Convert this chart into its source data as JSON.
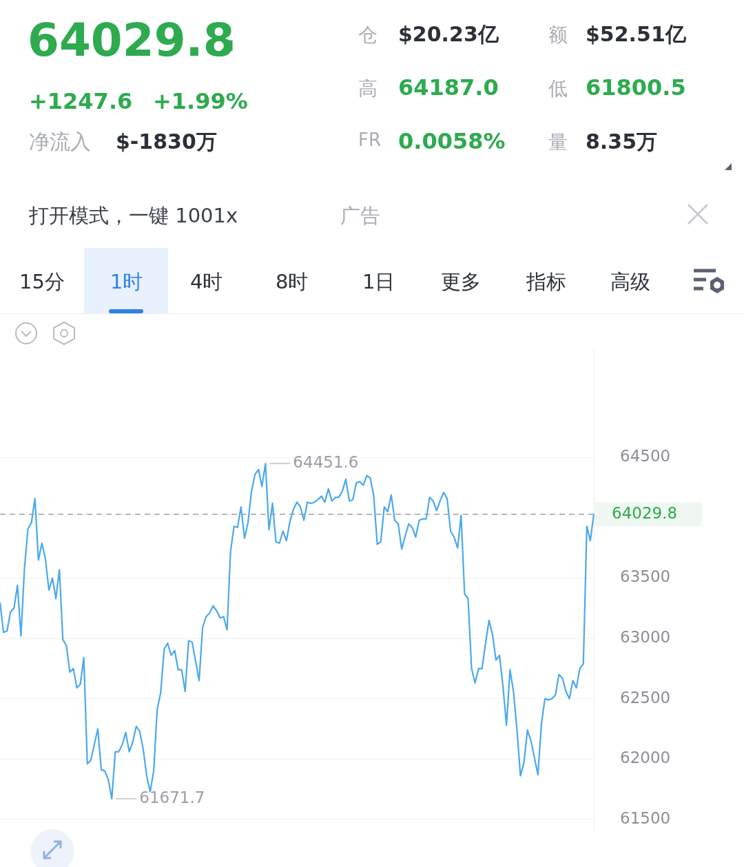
{
  "chart_data": {
    "type": "line",
    "title": "64029.8",
    "annotations": [
      "+1247.6",
      "+1.99%",
      "净流入",
      "$-1830万",
      "仓",
      "$20.23亿",
      "额",
      "$52.51亿",
      "高",
      "64187.0",
      "低",
      "61800.5",
      "FR",
      "0.0058%",
      "量",
      "8.35万",
      "打开模式，一键 1001x",
      "广告",
      "15分",
      "1时",
      "4时",
      "8时",
      "1日",
      "更多",
      "指标",
      "高级",
      "64451.6",
      "61671.7"
    ],
    "categories": [
      null,
      null,
      null,
      null,
      null,
      null,
      null,
      null,
      null,
      null,
      null,
      null,
      null,
      null,
      null,
      null,
      null,
      null,
      null,
      null,
      null,
      null,
      null,
      null,
      null,
      null,
      null,
      null,
      null,
      null,
      null,
      null,
      null,
      null,
      null,
      null,
      null,
      null,
      null,
      null,
      null,
      null,
      null,
      null,
      null,
      null,
      null,
      null,
      null,
      null,
      null,
      null,
      null,
      null,
      null,
      null,
      null,
      null,
      null,
      null,
      null,
      null,
      null,
      null,
      null,
      null,
      null,
      null,
      null,
      null,
      null,
      null,
      null,
      null,
      null,
      null,
      null,
      null,
      null,
      null,
      null,
      null,
      null,
      null,
      null,
      null,
      null,
      null,
      null,
      null,
      null,
      null,
      null,
      null,
      null,
      null,
      null,
      null,
      null,
      null,
      null,
      null,
      null,
      null,
      null,
      null,
      null,
      null,
      null,
      null,
      null,
      null,
      null,
      null,
      null,
      null,
      null,
      null,
      null,
      null,
      null,
      null,
      null,
      null,
      null,
      null,
      null,
      null,
      null,
      null,
      null,
      null,
      null,
      null,
      null,
      null,
      null,
      null,
      null,
      null,
      null,
      null,
      null,
      null,
      null,
      null,
      null,
      null,
      null,
      null,
      null,
      null,
      null,
      null,
      null,
      null,
      null,
      null,
      null,
      null,
      null,
      null,
      null,
      null,
      null,
      null,
      null,
      null,
      null,
      null,
      null
    ],
    "series": [
      {
        "color": "#4aa8ee",
        "values": [
          63300,
          63050,
          63060,
          63220,
          63250,
          63440,
          63020,
          63580,
          63910,
          63960,
          64160,
          63650,
          63790,
          63660,
          63400,
          63500,
          63330,
          63570,
          62990,
          62940,
          62720,
          62750,
          62590,
          62620,
          62840,
          61960,
          61990,
          62120,
          62250,
          61910,
          61900,
          61830,
          61670,
          62060,
          62060,
          62120,
          62220,
          62060,
          62140,
          62270,
          62230,
          62080,
          61860,
          61730,
          61900,
          62410,
          62550,
          62910,
          62960,
          62860,
          62900,
          62740,
          62740,
          62560,
          62980,
          62970,
          62810,
          62650,
          63090,
          63180,
          63210,
          63270,
          63230,
          63170,
          63180,
          63070,
          63720,
          63930,
          63920,
          64090,
          63830,
          63960,
          64220,
          64360,
          64400,
          64260,
          64450,
          63900,
          64120,
          63800,
          63790,
          63890,
          63810,
          63970,
          64070,
          64130,
          64090,
          63980,
          64130,
          64120,
          64130,
          64150,
          64180,
          64130,
          64240,
          64140,
          64170,
          64170,
          64220,
          64320,
          64140,
          64150,
          64290,
          64300,
          64270,
          64350,
          64330,
          64180,
          63780,
          63800,
          64090,
          64050,
          64190,
          63980,
          63950,
          63740,
          63850,
          63950,
          63920,
          63840,
          63980,
          63990,
          63990,
          64170,
          64140,
          64060,
          64140,
          64210,
          64160,
          63890,
          63840,
          63750,
          64020,
          63370,
          63330,
          62750,
          62630,
          62750,
          62750,
          62960,
          63150,
          63030,
          62820,
          62860,
          62600,
          62280,
          62740,
          62560,
          62240,
          61860,
          61970,
          62240,
          62150,
          62010,
          61870,
          62290,
          62500,
          62490,
          62500,
          62530,
          62700,
          62670,
          62560,
          62500,
          62650,
          62590,
          62750,
          62790,
          63930,
          63810,
          64030
        ]
      }
    ],
    "ylim": [
      61400,
      65400
    ],
    "yticks": [
      61500,
      62000,
      62500,
      63000,
      63500,
      64500
    ],
    "grid": "y",
    "marker": "none",
    "line_style": "solid",
    "ref_lines": [
      {
        "axis": "y",
        "value": 64029.8,
        "label": "64029.8",
        "color": "#9a9ea5",
        "line_style": "dashed"
      }
    ]
  }
}
